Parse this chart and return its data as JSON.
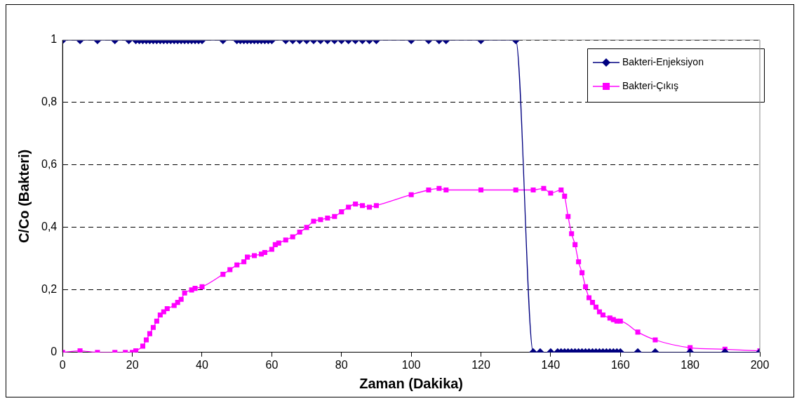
{
  "chart_data": {
    "type": "line",
    "xlabel": "Zaman (Dakika)",
    "ylabel": "C/Co (Bakteri)",
    "xlim": [
      0,
      200
    ],
    "xticks": [
      0,
      20,
      40,
      60,
      80,
      100,
      120,
      140,
      160,
      180,
      200
    ],
    "ylim": [
      0,
      1
    ],
    "yticks": [
      {
        "value": 0,
        "label": "0"
      },
      {
        "value": 0.2,
        "label": "0,2"
      },
      {
        "value": 0.4,
        "label": "0,4"
      },
      {
        "value": 0.6,
        "label": "0,6"
      },
      {
        "value": 0.8,
        "label": "0,8"
      },
      {
        "value": 1,
        "label": "1"
      }
    ],
    "grid": "y",
    "legend": "top right",
    "line_style": "solid",
    "series": [
      {
        "name": "Bakteri-Enjeksiyon",
        "color": "#000080",
        "marker": "diamond",
        "x": [
          0,
          5,
          10,
          15,
          19,
          21,
          22,
          23,
          24,
          25,
          26,
          27,
          28,
          29,
          30,
          31,
          32,
          33,
          34,
          35,
          36,
          37,
          38,
          39,
          40,
          46,
          50,
          51,
          52,
          53,
          54,
          55,
          56,
          57,
          58,
          59,
          60,
          64,
          66,
          68,
          70,
          72,
          74,
          76,
          78,
          80,
          82,
          84,
          86,
          88,
          90,
          100,
          105,
          108,
          110,
          120,
          130,
          135,
          137,
          140,
          142,
          143,
          144,
          145,
          146,
          147,
          148,
          149,
          150,
          151,
          152,
          153,
          154,
          155,
          156,
          157,
          158,
          159,
          160,
          165,
          170,
          180,
          190,
          200
        ],
        "values": [
          1,
          1,
          1,
          1,
          1,
          1,
          1,
          1,
          1,
          1,
          1,
          1,
          1,
          1,
          1,
          1,
          1,
          1,
          1,
          1,
          1,
          1,
          1,
          1,
          1,
          1,
          1,
          1,
          1,
          1,
          1,
          1,
          1,
          1,
          1,
          1,
          1,
          1,
          1,
          1,
          1,
          1,
          1,
          1,
          1,
          1,
          1,
          1,
          1,
          1,
          1,
          1,
          1,
          1,
          1,
          1,
          1,
          0,
          0,
          0,
          0,
          0,
          0,
          0,
          0,
          0,
          0,
          0,
          0,
          0,
          0,
          0,
          0,
          0,
          0,
          0,
          0,
          0,
          0,
          0,
          0,
          0,
          0,
          0
        ]
      },
      {
        "name": "Bakteri-Çıkış",
        "color": "#ff00ff",
        "marker": "square",
        "x": [
          0,
          5,
          10,
          15,
          18,
          20,
          21,
          23,
          24,
          25,
          26,
          27,
          28,
          29,
          30,
          32,
          33,
          34,
          35,
          37,
          38,
          40,
          46,
          48,
          50,
          52,
          53,
          55,
          57,
          58,
          60,
          61,
          62,
          64,
          66,
          68,
          70,
          72,
          74,
          76,
          78,
          80,
          82,
          84,
          86,
          88,
          90,
          100,
          105,
          108,
          110,
          120,
          130,
          135,
          138,
          140,
          143,
          144,
          145,
          146,
          147,
          148,
          149,
          150,
          151,
          152,
          153,
          154,
          155,
          157,
          158,
          159,
          160,
          165,
          170,
          180,
          190,
          200
        ],
        "values": [
          0,
          0.005,
          0,
          0,
          0,
          0,
          0.005,
          0.02,
          0.04,
          0.06,
          0.08,
          0.1,
          0.12,
          0.13,
          0.14,
          0.15,
          0.16,
          0.17,
          0.19,
          0.2,
          0.205,
          0.21,
          0.25,
          0.265,
          0.28,
          0.29,
          0.305,
          0.31,
          0.315,
          0.32,
          0.33,
          0.345,
          0.35,
          0.36,
          0.37,
          0.385,
          0.4,
          0.42,
          0.425,
          0.43,
          0.435,
          0.45,
          0.465,
          0.475,
          0.47,
          0.465,
          0.47,
          0.505,
          0.52,
          0.525,
          0.52,
          0.52,
          0.52,
          0.52,
          0.525,
          0.51,
          0.52,
          0.5,
          0.435,
          0.38,
          0.345,
          0.29,
          0.255,
          0.21,
          0.175,
          0.16,
          0.145,
          0.13,
          0.12,
          0.11,
          0.105,
          0.1,
          0.1,
          0.065,
          0.04,
          0.015,
          0.01,
          0.005
        ]
      }
    ]
  }
}
